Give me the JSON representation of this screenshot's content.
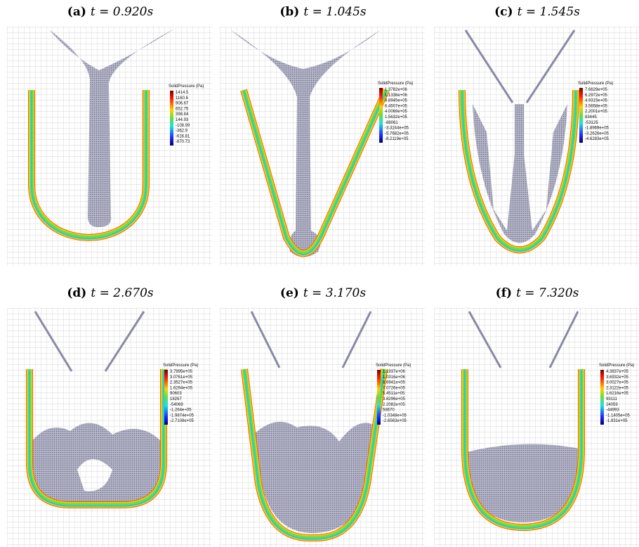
{
  "panels": [
    {
      "label": "(a)",
      "time": "t = 0.920s",
      "legend": {
        "title": "SolidPressure (Pa)",
        "values": [
          "1414.5",
          "1160.6",
          "906.67",
          "652.75",
          "398.84",
          "144.93",
          "-108.99",
          "-362.9",
          "-616.81",
          "-870.73"
        ]
      }
    },
    {
      "label": "(b)",
      "time": "t = 1.045s",
      "legend": {
        "title": "SolidPressure (Pa)",
        "values": [
          "1.3782e+06",
          "1.1338e+06",
          "8.8945e+05",
          "6.4507e+05",
          "4.0069e+05",
          "1.5632e+05",
          "-88061",
          "-3.3244e+05",
          "-5.7682e+05",
          "-8.2119e+05"
        ]
      }
    },
    {
      "label": "(c)",
      "time": "t = 1.545s",
      "legend": {
        "title": "SolidPressure (Pa)",
        "values": [
          "7.6629e+05",
          "6.2972e+05",
          "4.9315e+05",
          "3.5658e+05",
          "2.2001e+05",
          "83445",
          "-53125",
          "-1.8969e+05",
          "-3.2626e+05",
          "-4.6283e+05"
        ]
      }
    },
    {
      "label": "(d)",
      "time": "t = 2.670s",
      "legend": {
        "title": "SolidPressure (Pa)",
        "values": [
          "3.7995e+05",
          "3.0761e+05",
          "2.3527e+05",
          "1.6294e+05",
          "90603",
          "18267",
          "-54069",
          "-1.264e+05",
          "-1.9874e+05",
          "-2.7108e+05"
        ]
      }
    },
    {
      "label": "(e)",
      "time": "t = 3.170s",
      "legend": {
        "title": "SolidPressure (Pa)",
        "values": [
          "1.1937e+06",
          "1.0316e+06",
          "8.6941e+05",
          "7.0726e+05",
          "5.4511e+05",
          "3.8296e+05",
          "2.2082e+05",
          "58670",
          "-1.0348e+05",
          "-2.6563e+05"
        ]
      }
    },
    {
      "label": "(f)",
      "time": "t = 7.320s",
      "legend": {
        "title": "SolidPressure (Pa)",
        "values": [
          "4.3837e+05",
          "3.6932e+05",
          "3.0027e+05",
          "2.3122e+05",
          "1.6216e+05",
          "93111",
          "24059",
          "-44993",
          "-1.1405e+05",
          "-1.831e+05"
        ]
      }
    }
  ]
}
